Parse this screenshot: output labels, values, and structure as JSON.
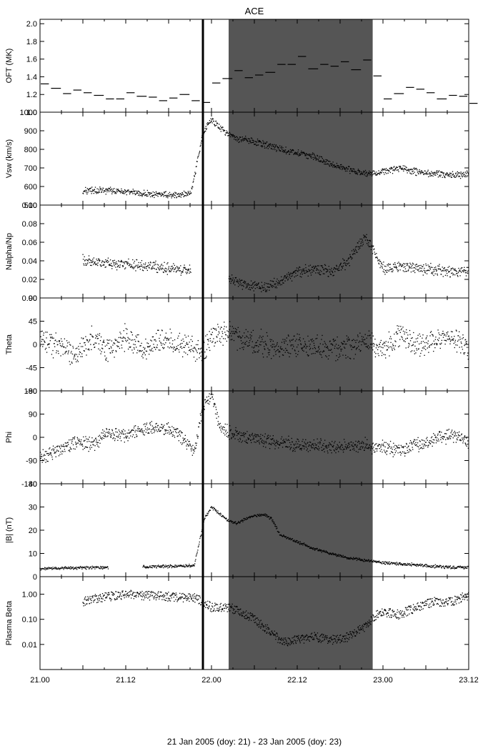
{
  "figure": {
    "title": "ACE",
    "footer": "21  Jan 2005 (doy: 21) - 23  Jan 2005 (doy: 23)",
    "x_tick_labels": [
      "21.00",
      "21.12",
      "22.00",
      "22.12",
      "23.00",
      "23.12"
    ],
    "colors": {
      "background": "#ffffff",
      "shade": "#555555",
      "axes": "#000000",
      "shock_line": "#000000",
      "points_on_white": "#000000",
      "points_on_shade": "#000000"
    }
  },
  "chart_data": [
    {
      "type": "line",
      "panel": "oft",
      "ylabel": "OFT (MK)",
      "ylim": [
        1.0,
        2.05
      ],
      "yticks": [
        1.0,
        1.2,
        1.4,
        1.6,
        1.8,
        2.0
      ],
      "ytick_labels": [
        "1.0",
        "1.2",
        "1.4",
        "1.6",
        "1.8",
        "2.0"
      ],
      "style": "step-segments",
      "x_unit": "day of year 2005",
      "x": [
        21.0,
        21.06,
        21.13,
        21.19,
        21.25,
        21.31,
        21.38,
        21.44,
        21.5,
        21.56,
        21.63,
        21.69,
        21.75,
        21.81,
        21.88,
        21.94,
        22.0,
        22.06,
        22.13,
        22.19,
        22.25,
        22.31,
        22.38,
        22.44,
        22.5,
        22.56,
        22.63,
        22.69,
        22.75,
        22.81,
        22.88,
        22.94,
        23.0,
        23.06,
        23.13,
        23.19,
        23.25,
        23.31,
        23.38,
        23.44,
        23.5
      ],
      "values": [
        1.32,
        1.27,
        1.21,
        1.25,
        1.22,
        1.19,
        1.15,
        1.15,
        1.22,
        1.18,
        1.17,
        1.13,
        1.16,
        1.2,
        1.13,
        1.11,
        1.33,
        1.38,
        1.47,
        1.39,
        1.42,
        1.45,
        1.54,
        1.54,
        1.63,
        1.49,
        1.54,
        1.52,
        1.57,
        1.48,
        1.59,
        1.41,
        1.15,
        1.21,
        1.28,
        1.26,
        1.22,
        1.15,
        1.19,
        1.18,
        1.1
      ]
    },
    {
      "type": "scatter",
      "panel": "vsw",
      "ylabel": "Vsw (km/s)",
      "ylim": [
        500,
        1000
      ],
      "yticks": [
        500,
        600,
        700,
        800,
        900,
        1000
      ],
      "ytick_labels": [
        "500",
        "600",
        "700",
        "800",
        "900",
        "1000"
      ],
      "x_unit": "day of year 2005",
      "x": [
        21.25,
        21.38,
        21.5,
        21.63,
        21.75,
        21.88,
        21.95,
        21.98,
        22.0,
        22.05,
        22.1,
        22.15,
        22.2,
        22.3,
        22.4,
        22.5,
        22.6,
        22.7,
        22.8,
        22.9,
        23.0,
        23.1,
        23.2,
        23.3,
        23.4,
        23.5
      ],
      "values": [
        575,
        580,
        570,
        560,
        555,
        560,
        890,
        930,
        960,
        920,
        880,
        860,
        850,
        830,
        800,
        780,
        760,
        720,
        690,
        670,
        680,
        700,
        680,
        670,
        660,
        670
      ]
    },
    {
      "type": "scatter",
      "panel": "nalpha",
      "ylabel": "Nalpha/Np",
      "ylim": [
        0.0,
        0.1
      ],
      "yticks": [
        0.0,
        0.02,
        0.04,
        0.06,
        0.08,
        0.1
      ],
      "ytick_labels": [
        "0.00",
        "0.02",
        "0.04",
        "0.06",
        "0.08",
        "0.10"
      ],
      "x_unit": "day of year 2005",
      "x": [
        21.25,
        21.38,
        21.5,
        21.63,
        21.75,
        21.88,
        22.1,
        22.2,
        22.3,
        22.4,
        22.5,
        22.6,
        22.7,
        22.8,
        22.85,
        22.9,
        22.95,
        23.0,
        23.1,
        23.2,
        23.3,
        23.4,
        23.5
      ],
      "values": [
        0.04,
        0.038,
        0.036,
        0.034,
        0.032,
        0.03,
        0.02,
        0.015,
        0.012,
        0.018,
        0.028,
        0.032,
        0.028,
        0.04,
        0.055,
        0.065,
        0.05,
        0.032,
        0.034,
        0.032,
        0.03,
        0.028,
        0.03
      ]
    },
    {
      "type": "scatter",
      "panel": "theta",
      "ylabel": "Theta",
      "ylim": [
        -90,
        90
      ],
      "yticks": [
        -90,
        -45,
        0,
        45,
        90
      ],
      "ytick_labels": [
        "-90",
        "-45",
        "0",
        "45",
        "90"
      ],
      "x_unit": "day of year 2005",
      "x": [
        21.0,
        21.1,
        21.2,
        21.3,
        21.4,
        21.5,
        21.6,
        21.7,
        21.8,
        21.9,
        21.95,
        22.0,
        22.1,
        22.2,
        22.3,
        22.4,
        22.5,
        22.6,
        22.7,
        22.8,
        22.9,
        23.0,
        23.1,
        23.2,
        23.3,
        23.4,
        23.5
      ],
      "values": [
        10,
        0,
        -25,
        10,
        -10,
        15,
        -15,
        10,
        0,
        -5,
        -20,
        15,
        25,
        10,
        0,
        -5,
        0,
        -5,
        -10,
        -5,
        5,
        -10,
        15,
        -5,
        10,
        20,
        -10
      ]
    },
    {
      "type": "scatter",
      "panel": "phi",
      "ylabel": "Phi",
      "ylim": [
        -180,
        180
      ],
      "yticks": [
        -180,
        -90,
        0,
        90,
        180
      ],
      "ytick_labels": [
        "-180",
        "-90",
        "0",
        "90",
        "180"
      ],
      "x_unit": "day of year 2005",
      "x": [
        21.0,
        21.1,
        21.2,
        21.3,
        21.4,
        21.5,
        21.6,
        21.7,
        21.8,
        21.9,
        21.95,
        22.0,
        22.05,
        22.1,
        22.2,
        22.3,
        22.4,
        22.5,
        22.6,
        22.7,
        22.8,
        22.9,
        23.0,
        23.1,
        23.2,
        23.3,
        23.4,
        23.5
      ],
      "values": [
        -80,
        -50,
        -20,
        -30,
        20,
        10,
        30,
        40,
        20,
        -60,
        120,
        160,
        40,
        20,
        0,
        -10,
        -20,
        -30,
        -30,
        -35,
        -40,
        -30,
        -40,
        -50,
        -30,
        -10,
        10,
        -20
      ]
    },
    {
      "type": "line",
      "panel": "b",
      "ylabel": "|B| (nT)",
      "ylim": [
        0,
        40
      ],
      "yticks": [
        0,
        10,
        20,
        30,
        40
      ],
      "ytick_labels": [
        "0",
        "10",
        "20",
        "30",
        "40"
      ],
      "x_unit": "day of year 2005",
      "x": [
        21.0,
        21.2,
        21.4,
        21.6,
        21.8,
        21.9,
        21.93,
        21.96,
        22.0,
        22.05,
        22.1,
        22.15,
        22.2,
        22.3,
        22.35,
        22.4,
        22.5,
        22.6,
        22.7,
        22.8,
        22.9,
        23.0,
        23.1,
        23.2,
        23.3,
        23.4,
        23.5
      ],
      "values": [
        3.5,
        3.8,
        4.0,
        4.2,
        4.5,
        5.0,
        15,
        25,
        30,
        27,
        24,
        23,
        25,
        27,
        25,
        18,
        15,
        12,
        10,
        8,
        7,
        6,
        5.5,
        5,
        4.5,
        4,
        4
      ]
    },
    {
      "type": "scatter",
      "panel": "beta",
      "ylabel": "Plasma Beta",
      "ylim": [
        0.001,
        5.0
      ],
      "yscale": "log",
      "yticks": [
        0.01,
        0.1,
        1.0
      ],
      "ytick_labels": [
        "0.01",
        "0.10",
        "1.00"
      ],
      "x_unit": "day of year 2005",
      "x": [
        21.25,
        21.4,
        21.5,
        21.6,
        21.75,
        21.9,
        21.95,
        22.0,
        22.1,
        22.2,
        22.3,
        22.4,
        22.5,
        22.6,
        22.7,
        22.8,
        22.9,
        23.0,
        23.1,
        23.2,
        23.3,
        23.4,
        23.5
      ],
      "values": [
        0.5,
        0.8,
        1.0,
        0.9,
        0.8,
        0.7,
        0.5,
        0.3,
        0.3,
        0.15,
        0.05,
        0.012,
        0.015,
        0.02,
        0.015,
        0.02,
        0.05,
        0.2,
        0.15,
        0.3,
        0.5,
        0.5,
        0.9
      ]
    }
  ],
  "annotations": {
    "shock_line_x": 21.95,
    "shaded_interval": [
      22.1,
      22.94
    ],
    "x_range": [
      21.0,
      23.5
    ]
  }
}
